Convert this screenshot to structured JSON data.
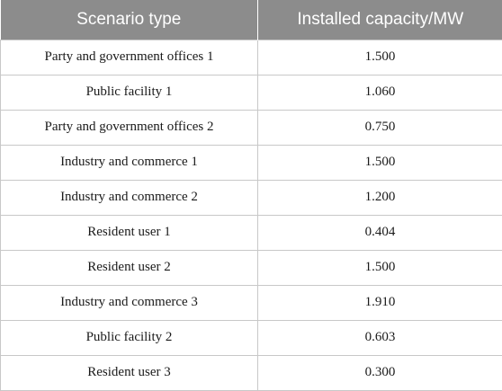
{
  "table": {
    "headers": [
      "Scenario type",
      "Installed capacity/MW"
    ],
    "rows": [
      [
        "Party and government offices 1",
        "1.500"
      ],
      [
        "Public facility 1",
        "1.060"
      ],
      [
        "Party and government offices 2",
        "0.750"
      ],
      [
        "Industry and commerce 1",
        "1.500"
      ],
      [
        "Industry and commerce 2",
        "1.200"
      ],
      [
        "Resident user 1",
        "0.404"
      ],
      [
        "Resident user 2",
        "1.500"
      ],
      [
        "Industry and commerce 3",
        "1.910"
      ],
      [
        "Public facility 2",
        "0.603"
      ],
      [
        "Resident user 3",
        "0.300"
      ]
    ]
  },
  "colors": {
    "header_bg": "#8c8c8c",
    "header_text": "#ffffff",
    "grid": "#c8c8c8"
  }
}
